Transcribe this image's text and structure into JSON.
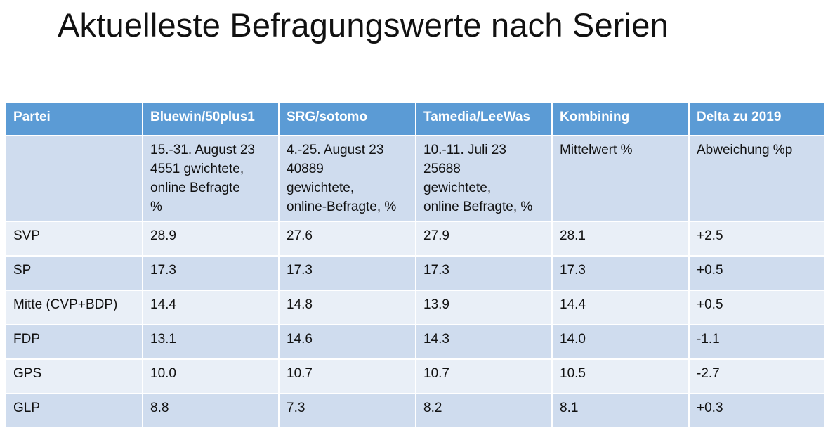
{
  "title": "Aktuelleste Befragungswerte nach Serien",
  "table": {
    "headers": [
      "Partei",
      "Bluewin/50plus1",
      "SRG/sotomo",
      "Tamedia/LeeWas",
      "Kombining",
      "Delta zu 2019"
    ],
    "subheader": [
      [],
      [
        "15.-31. August 23",
        "4551 gwichtete,",
        "online Befragte",
        "%"
      ],
      [
        "4.-25. August 23",
        "40889",
        "gewichtete,",
        "online-Befragte, %"
      ],
      [
        "10.-11. Juli 23",
        "25688",
        "gewichtete,",
        "online Befragte, %"
      ],
      [
        "Mittelwert %"
      ],
      [
        "Abweichung %p"
      ]
    ],
    "rows": [
      [
        "SVP",
        "28.9",
        "27.6",
        "27.9",
        "28.1",
        "+2.5"
      ],
      [
        "SP",
        "17.3",
        "17.3",
        "17.3",
        "17.3",
        "+0.5"
      ],
      [
        "Mitte (CVP+BDP)",
        "14.4",
        "14.8",
        "13.9",
        "14.4",
        "+0.5"
      ],
      [
        "FDP",
        "13.1",
        "14.6",
        "14.3",
        "14.0",
        "-1.1"
      ],
      [
        "GPS",
        "10.0",
        "10.7",
        "10.7",
        "10.5",
        "-2.7"
      ],
      [
        "GLP",
        "8.8",
        "7.3",
        "8.2",
        "8.1",
        "+0.3"
      ]
    ]
  },
  "colors": {
    "header_bg": "#5b9bd5",
    "row_light": "#e9eff7",
    "row_dark": "#cfdcee"
  }
}
